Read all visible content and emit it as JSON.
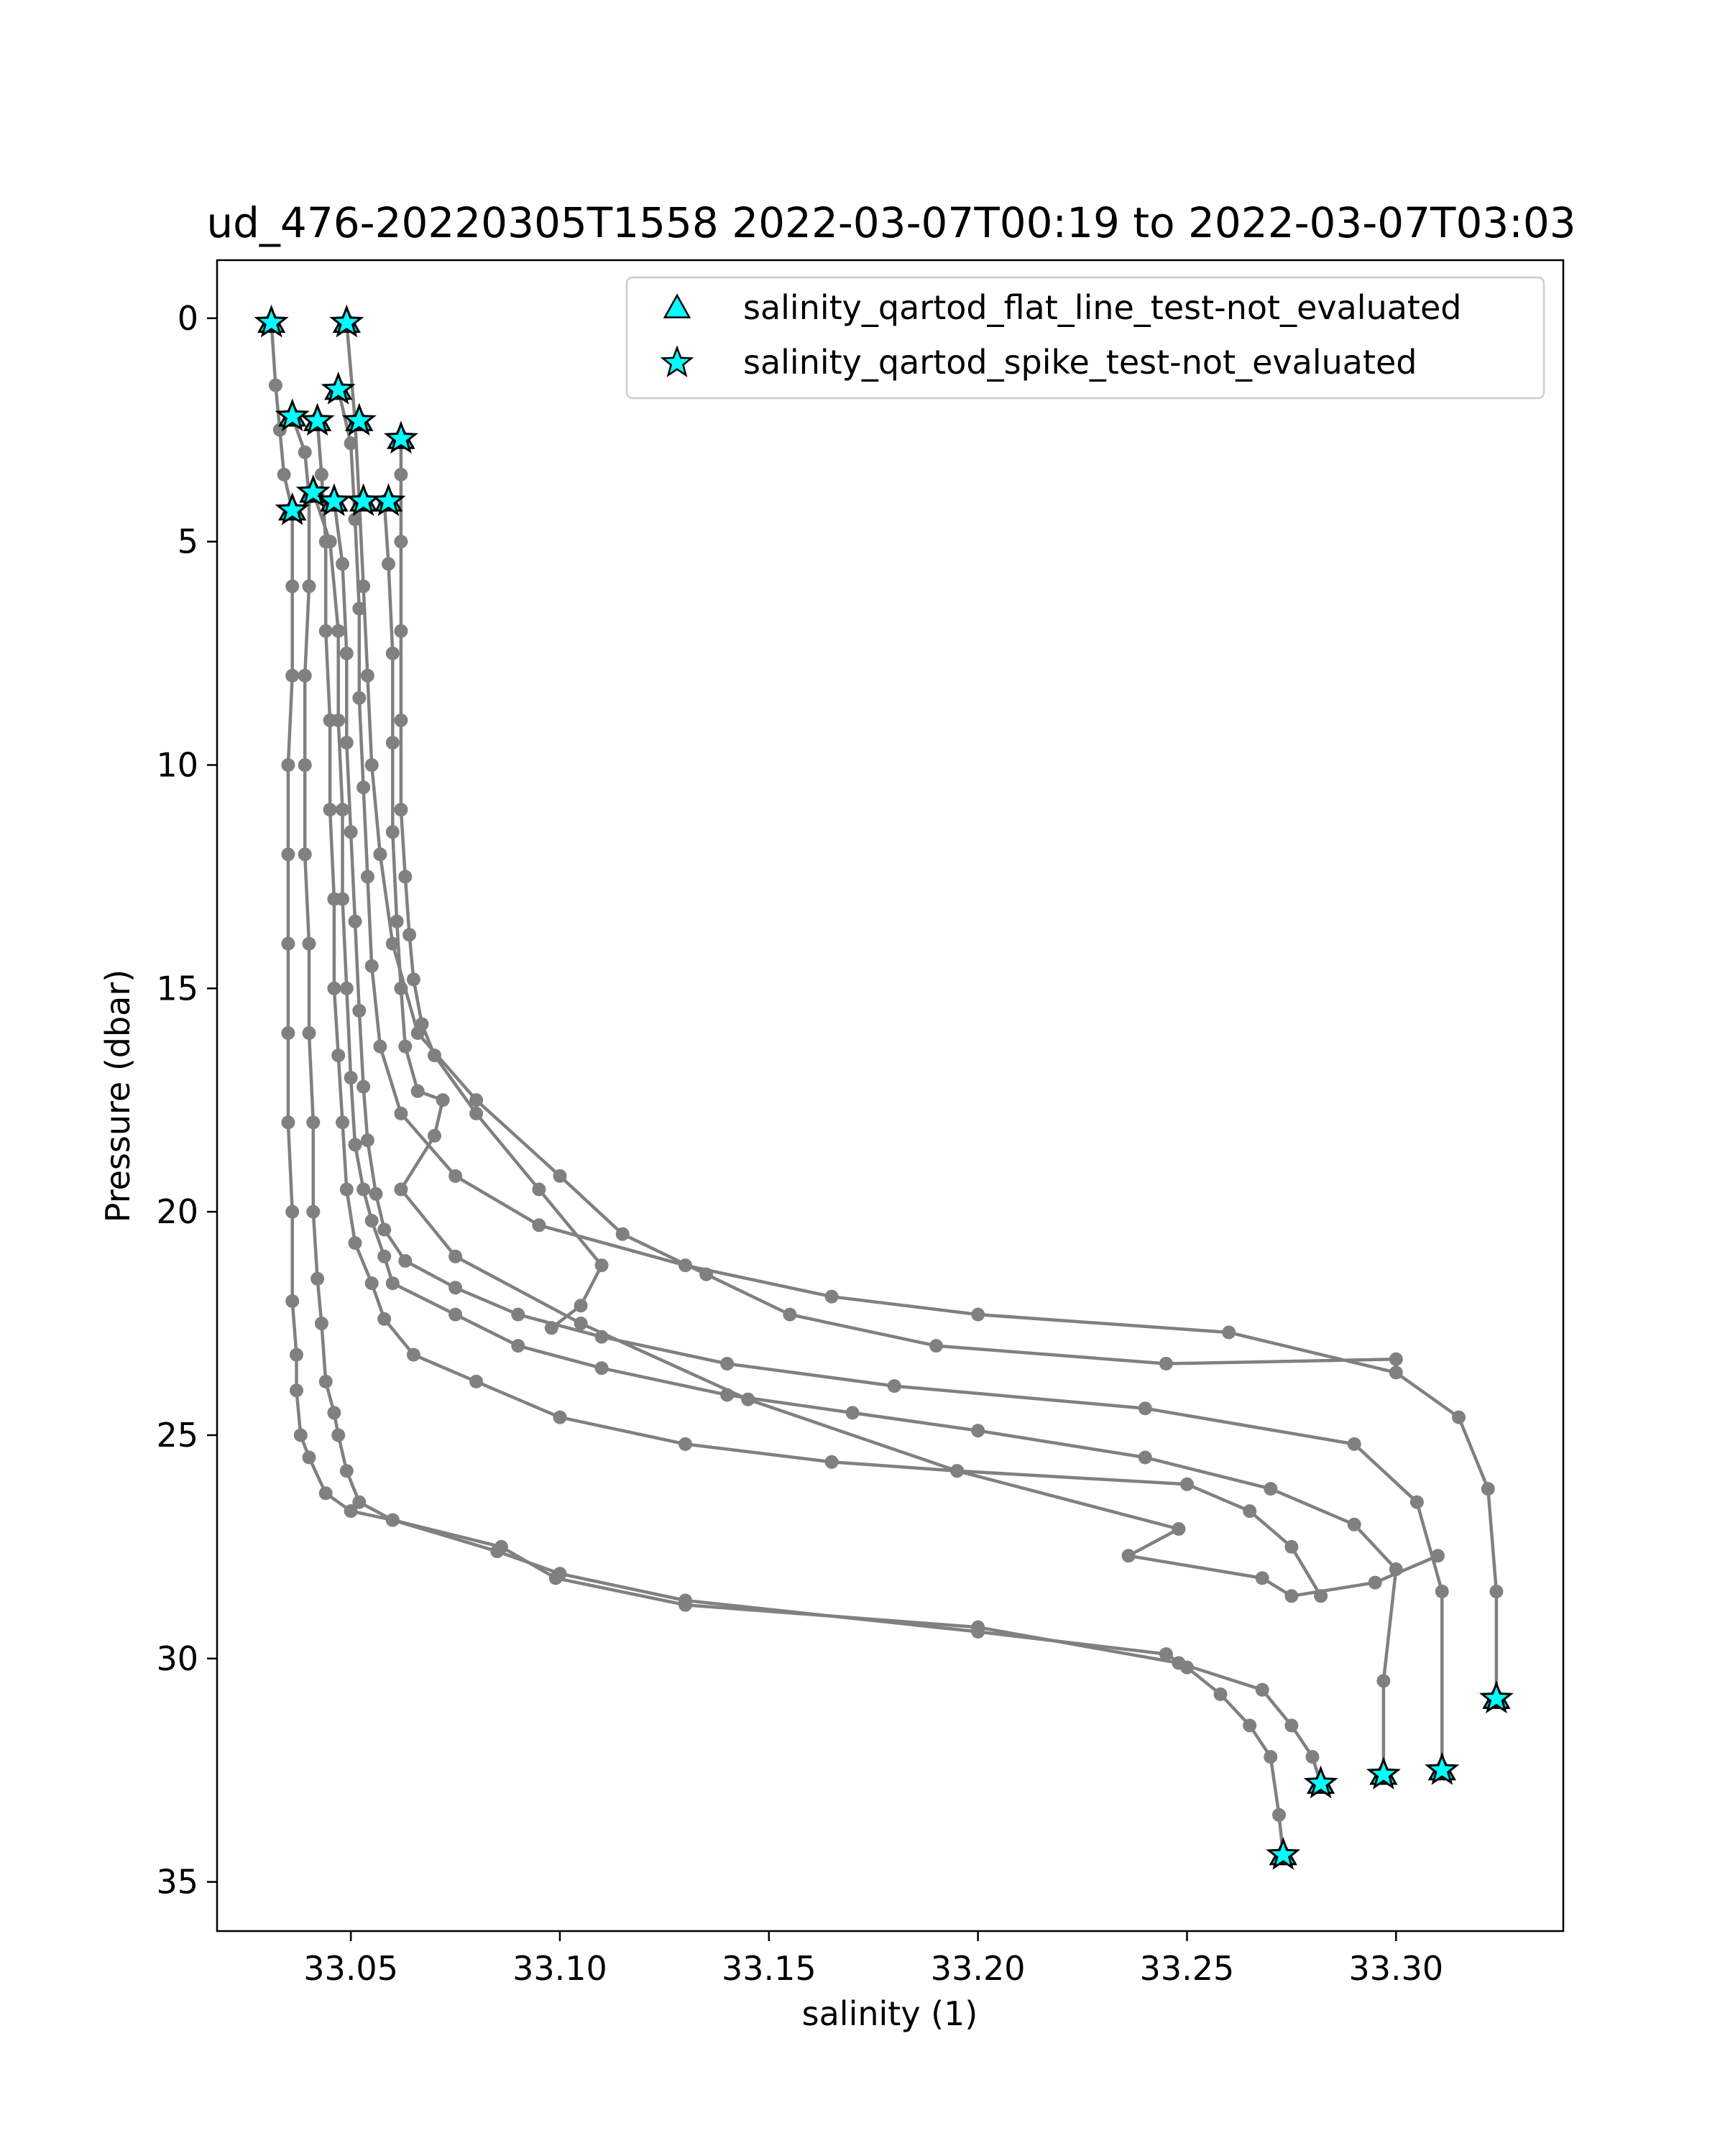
{
  "chart_data": {
    "type": "scatter",
    "title": "ud_476-20220305T1558 2022-03-07T00:19 to 2022-03-07T03:03",
    "xlabel": "salinity (1)",
    "ylabel": "Pressure (dbar)",
    "xlim": [
      33.018,
      33.34
    ],
    "ylim": [
      36.1,
      -1.3
    ],
    "y_inverted": true,
    "xticks": [
      33.05,
      33.1,
      33.15,
      33.2,
      33.25,
      33.3
    ],
    "xtick_labels": [
      "33.05",
      "33.10",
      "33.15",
      "33.20",
      "33.25",
      "33.30"
    ],
    "yticks": [
      0,
      5,
      10,
      15,
      20,
      25,
      30,
      35
    ],
    "ytick_labels": [
      "0",
      "5",
      "10",
      "15",
      "20",
      "25",
      "30",
      "35"
    ],
    "grid": false,
    "legend_position": "top-right",
    "colors": {
      "profile": "#808080",
      "flag_fill": "#00ffff",
      "flag_edge": "#000000"
    },
    "legend": [
      {
        "label": "salinity_qartod_flat_line_test-not_evaluated",
        "marker": "triangle"
      },
      {
        "label": "salinity_qartod_spike_test-not_evaluated",
        "marker": "star"
      }
    ],
    "series": [
      {
        "marker": "circle",
        "x": [
          33.031,
          33.032,
          33.033,
          33.034,
          33.036,
          33.036,
          33.036,
          33.035,
          33.035,
          33.035,
          33.035,
          33.035,
          33.036,
          33.036,
          33.037,
          33.037,
          33.038,
          33.04,
          33.044,
          33.05,
          33.06,
          33.085,
          33.1,
          33.13,
          33.2,
          33.245,
          33.25,
          33.258,
          33.265,
          33.27,
          33.272,
          33.273
        ],
        "y": [
          0.1,
          1.5,
          2.5,
          3.5,
          4.3,
          6,
          8,
          10,
          12,
          14,
          16,
          18,
          20,
          22,
          23.2,
          24,
          25,
          25.5,
          26.3,
          26.7,
          26.9,
          27.6,
          28.1,
          28.7,
          29.4,
          29.9,
          30.2,
          30.8,
          31.5,
          32.2,
          33.5,
          34.4
        ]
      },
      {
        "marker": "circle",
        "x": [
          33.036,
          33.039,
          33.04,
          33.04,
          33.039,
          33.039,
          33.039,
          33.04,
          33.04,
          33.041,
          33.041,
          33.042,
          33.043,
          33.044,
          33.046,
          33.047,
          33.049,
          33.052,
          33.06,
          33.086,
          33.099,
          33.13,
          33.2,
          33.248,
          33.268,
          33.275,
          33.28,
          33.282
        ],
        "y": [
          2.2,
          3,
          4,
          6,
          8,
          10,
          12,
          14,
          16,
          18,
          20,
          21.5,
          22.5,
          23.8,
          24.5,
          25,
          25.8,
          26.5,
          26.9,
          27.5,
          28.2,
          28.8,
          29.3,
          30.1,
          30.7,
          31.5,
          32.2,
          32.8
        ]
      },
      {
        "marker": "circle",
        "x": [
          33.042,
          33.043,
          33.044,
          33.044,
          33.045,
          33.045,
          33.046,
          33.046,
          33.047,
          33.048,
          33.049,
          33.051,
          33.055,
          33.058,
          33.065,
          33.08,
          33.1,
          33.13,
          33.165,
          33.195,
          33.25,
          33.265,
          33.275,
          33.282
        ],
        "y": [
          2.3,
          3.5,
          5,
          7,
          9,
          11,
          13,
          15,
          16.5,
          18,
          19.5,
          20.7,
          21.6,
          22.4,
          23.2,
          23.8,
          24.6,
          25.2,
          25.6,
          25.8,
          26.1,
          26.7,
          27.5,
          28.6
        ]
      },
      {
        "marker": "circle",
        "x": [
          33.041,
          33.045,
          33.047,
          33.047,
          33.048,
          33.048,
          33.049,
          33.05,
          33.051,
          33.053,
          33.055,
          33.058,
          33.06,
          33.075,
          33.09,
          33.11,
          33.14,
          33.17,
          33.2,
          33.24,
          33.27,
          33.29,
          33.3,
          33.297,
          33.297
        ],
        "y": [
          3.9,
          5,
          7,
          9,
          11,
          13,
          15,
          17,
          18.5,
          19.5,
          20.2,
          21,
          21.6,
          22.3,
          23,
          23.5,
          24.1,
          24.5,
          24.9,
          25.5,
          26.2,
          27,
          28,
          30.5,
          32.6
        ]
      },
      {
        "marker": "circle",
        "x": [
          33.046,
          33.048,
          33.049,
          33.049,
          33.05,
          33.051,
          33.052,
          33.053,
          33.054,
          33.056,
          33.058,
          33.063,
          33.075,
          33.09,
          33.11,
          33.14,
          33.18,
          33.24,
          33.29,
          33.305,
          33.311,
          33.311
        ],
        "y": [
          4.1,
          5.5,
          7.5,
          9.5,
          11.5,
          13.5,
          15.5,
          17.2,
          18.4,
          19.6,
          20.4,
          21.1,
          21.7,
          22.3,
          22.8,
          23.4,
          23.9,
          24.4,
          25.2,
          26.5,
          28.5,
          32.5
        ]
      },
      {
        "marker": "circle",
        "x": [
          33.047,
          33.05,
          33.051,
          33.052,
          33.052,
          33.053,
          33.054,
          33.055,
          33.057,
          33.062,
          33.075,
          33.095,
          33.13,
          33.165,
          33.2,
          33.26,
          33.3,
          33.315,
          33.322,
          33.324,
          33.324
        ],
        "y": [
          1.6,
          2.8,
          4.5,
          6.5,
          8.5,
          10.5,
          12.5,
          14.5,
          16.3,
          17.8,
          19.2,
          20.3,
          21.2,
          21.9,
          22.3,
          22.7,
          23.6,
          24.6,
          26.2,
          28.5,
          30.9
        ]
      },
      {
        "marker": "circle",
        "x": [
          33.049,
          33.051,
          33.052,
          33.053,
          33.054,
          33.055,
          33.057,
          33.06,
          33.066,
          33.08,
          33.1,
          33.115,
          33.135,
          33.155,
          33.19,
          33.245,
          33.3
        ],
        "y": [
          0.1,
          2.3,
          4.1,
          6,
          8,
          10,
          12,
          14,
          16,
          17.5,
          19.2,
          20.5,
          21.4,
          22.3,
          23,
          23.4,
          23.3
        ]
      },
      {
        "marker": "circle",
        "x": [
          33.058,
          33.059,
          33.06,
          33.06,
          33.06,
          33.061,
          33.062,
          33.063,
          33.066,
          33.072,
          33.07,
          33.062,
          33.075,
          33.105,
          33.145,
          33.195,
          33.248,
          33.236,
          33.268,
          33.275,
          33.295,
          33.31
        ],
        "y": [
          4.1,
          5.5,
          7.5,
          9.5,
          11.5,
          13.5,
          15,
          16.3,
          17.3,
          17.5,
          18.3,
          19.5,
          21,
          22.5,
          24.2,
          25.8,
          27.1,
          27.7,
          28.2,
          28.6,
          28.3,
          27.7
        ]
      },
      {
        "marker": "circle",
        "x": [
          33.062,
          33.062,
          33.062,
          33.062,
          33.062,
          33.062,
          33.063,
          33.064,
          33.065,
          33.067,
          33.07,
          33.08,
          33.095,
          33.11,
          33.105,
          33.098
        ],
        "y": [
          2.7,
          3.5,
          5,
          7,
          9,
          11,
          12.5,
          13.8,
          14.8,
          15.8,
          16.5,
          17.8,
          19.5,
          21.2,
          22.1,
          22.6
        ]
      }
    ],
    "flagged_spike_test": {
      "marker": "star",
      "x": [
        33.031,
        33.049,
        33.036,
        33.042,
        33.047,
        33.052,
        33.062,
        33.041,
        33.036,
        33.046,
        33.053,
        33.059,
        33.273,
        33.282,
        33.297,
        33.311,
        33.324
      ],
      "y": [
        0.1,
        0.1,
        2.2,
        2.3,
        1.6,
        2.3,
        2.7,
        3.9,
        4.3,
        4.1,
        4.1,
        4.1,
        34.4,
        32.8,
        32.6,
        32.5,
        30.9
      ]
    },
    "flagged_flat_line_test": {
      "marker": "triangle",
      "x": [
        33.031,
        33.049,
        33.036,
        33.042,
        33.047,
        33.052,
        33.062,
        33.041,
        33.036,
        33.046,
        33.053,
        33.059,
        33.273,
        33.282,
        33.297,
        33.311,
        33.324
      ],
      "y": [
        0.1,
        0.1,
        2.2,
        2.3,
        1.6,
        2.3,
        2.7,
        3.9,
        4.3,
        4.1,
        4.1,
        4.1,
        34.4,
        32.8,
        32.6,
        32.5,
        30.9
      ]
    }
  }
}
